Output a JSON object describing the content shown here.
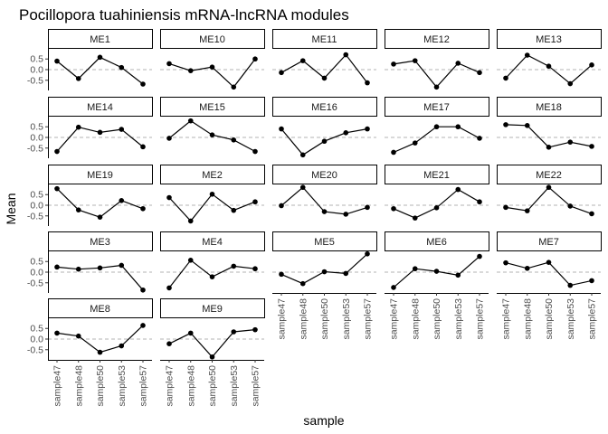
{
  "chart_data": {
    "type": "line",
    "title": "Pocillopora tuahiniensis mRNA-lncRNA modules",
    "xlabel": "sample",
    "ylabel": "Mean",
    "categories": [
      "sample47",
      "sample48",
      "sample50",
      "sample53",
      "sample57"
    ],
    "yticks": [
      {
        "value": 0.5,
        "label": "0.5"
      },
      {
        "value": 0.0,
        "label": "0.0"
      },
      {
        "value": -0.5,
        "label": "-0.5"
      }
    ],
    "ylim": [
      -0.85,
      0.85
    ],
    "reference_line": 0,
    "grid": false,
    "colors": {
      "line": "#000000",
      "point": "#000000",
      "reference": "#b3b3b3",
      "strip_bg": "#ffffff",
      "strip_border": "#000000"
    },
    "series": [
      {
        "name": "ME1",
        "values": [
          0.4,
          -0.42,
          0.58,
          0.1,
          -0.68
        ]
      },
      {
        "name": "ME10",
        "values": [
          0.28,
          -0.05,
          0.12,
          -0.82,
          0.5
        ]
      },
      {
        "name": "ME11",
        "values": [
          -0.14,
          0.42,
          -0.4,
          0.7,
          -0.62
        ]
      },
      {
        "name": "ME12",
        "values": [
          0.26,
          0.42,
          -0.82,
          0.3,
          -0.14
        ]
      },
      {
        "name": "ME13",
        "values": [
          -0.4,
          0.68,
          0.16,
          -0.66,
          0.22
        ]
      },
      {
        "name": "ME14",
        "values": [
          -0.66,
          0.48,
          0.24,
          0.38,
          -0.44
        ]
      },
      {
        "name": "ME15",
        "values": [
          -0.04,
          0.78,
          0.12,
          -0.12,
          -0.66
        ]
      },
      {
        "name": "ME16",
        "values": [
          0.4,
          -0.82,
          -0.18,
          0.22,
          0.4
        ]
      },
      {
        "name": "ME17",
        "values": [
          -0.7,
          -0.26,
          0.5,
          0.5,
          -0.04
        ]
      },
      {
        "name": "ME18",
        "values": [
          0.6,
          0.56,
          -0.46,
          -0.22,
          -0.42
        ]
      },
      {
        "name": "ME19",
        "values": [
          0.78,
          -0.22,
          -0.56,
          0.22,
          -0.16
        ]
      },
      {
        "name": "ME2",
        "values": [
          0.36,
          -0.74,
          0.52,
          -0.24,
          0.16
        ]
      },
      {
        "name": "ME20",
        "values": [
          -0.02,
          0.84,
          -0.3,
          -0.42,
          -0.1
        ]
      },
      {
        "name": "ME21",
        "values": [
          -0.16,
          -0.6,
          -0.12,
          0.74,
          0.16
        ]
      },
      {
        "name": "ME22",
        "values": [
          -0.1,
          -0.26,
          0.84,
          -0.04,
          -0.4
        ]
      },
      {
        "name": "ME3",
        "values": [
          0.24,
          0.14,
          0.2,
          0.32,
          -0.84
        ]
      },
      {
        "name": "ME4",
        "values": [
          -0.74,
          0.56,
          -0.22,
          0.28,
          0.16
        ]
      },
      {
        "name": "ME5",
        "values": [
          -0.1,
          -0.54,
          0.02,
          -0.06,
          0.86
        ]
      },
      {
        "name": "ME6",
        "values": [
          -0.72,
          0.16,
          0.04,
          -0.14,
          0.74
        ]
      },
      {
        "name": "ME7",
        "values": [
          0.44,
          0.18,
          0.46,
          -0.62,
          -0.4
        ]
      },
      {
        "name": "ME8",
        "values": [
          0.28,
          0.14,
          -0.62,
          -0.32,
          0.64
        ]
      },
      {
        "name": "ME9",
        "values": [
          -0.22,
          0.28,
          -0.84,
          0.34,
          0.44
        ]
      }
    ]
  }
}
